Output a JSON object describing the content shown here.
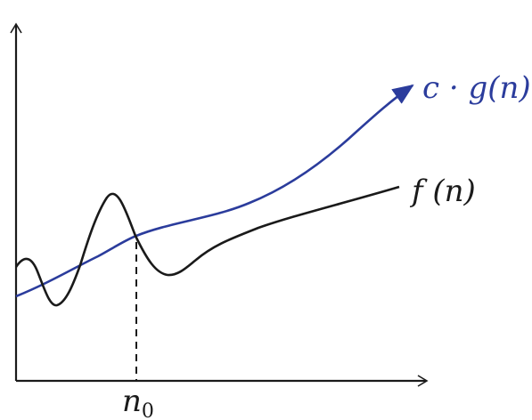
{
  "curves": {
    "upper": {
      "label": "c · g(n)",
      "color": "#2b3c9c"
    },
    "lower": {
      "label": "f (n)",
      "color": "#1a1a1a"
    }
  },
  "threshold": {
    "label_main": "n",
    "label_sub": "0"
  },
  "colors": {
    "axis": "#1a1a1a",
    "background": "#ffffff"
  }
}
